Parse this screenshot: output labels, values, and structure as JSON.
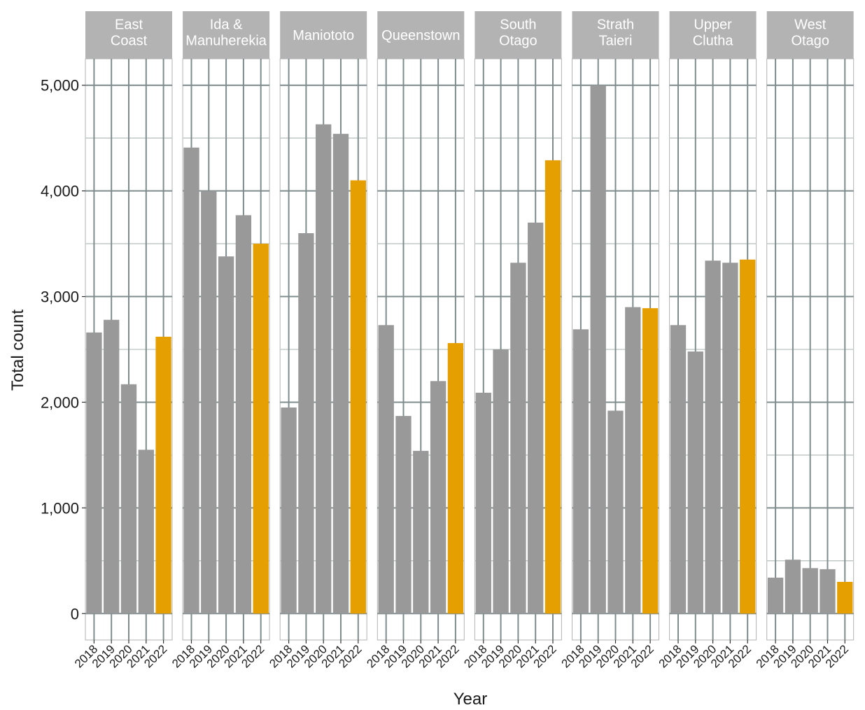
{
  "chart_data": {
    "type": "bar",
    "xlabel": "Year",
    "ylabel": "Total count",
    "ylim": [
      -250,
      5250
    ],
    "y_ticks": [
      0,
      1000,
      2000,
      3000,
      4000,
      5000
    ],
    "y_tick_labels": [
      "0",
      "1,000",
      "2,000",
      "3,000",
      "4,000",
      "5,000"
    ],
    "categories": [
      "2018",
      "2019",
      "2020",
      "2021",
      "2022"
    ],
    "grid": true,
    "legend": "none",
    "colors": {
      "bar": "#999999",
      "highlight": "#E69F00",
      "strip": "#B3B3B3",
      "grid_major": "#7F8C8D",
      "grid_minor": "#C5CDCC",
      "panel_border": "#B3B3B3"
    },
    "highlight_category": "2022",
    "panels": [
      {
        "strip": [
          "East",
          "Coast"
        ],
        "values": [
          2660,
          2780,
          2170,
          1550,
          2620
        ]
      },
      {
        "strip": [
          "Ida &",
          "Manuherekia"
        ],
        "values": [
          4410,
          4000,
          3380,
          3770,
          3500
        ]
      },
      {
        "strip": [
          "Maniototo"
        ],
        "values": [
          1950,
          3600,
          4630,
          4540,
          4100
        ]
      },
      {
        "strip": [
          "Queenstown"
        ],
        "values": [
          2730,
          1870,
          1540,
          2200,
          2560
        ]
      },
      {
        "strip": [
          "South",
          "Otago"
        ],
        "values": [
          2090,
          2500,
          3320,
          3700,
          4290
        ]
      },
      {
        "strip": [
          "Strath",
          "Taieri"
        ],
        "values": [
          2690,
          5000,
          1920,
          2900,
          2890
        ]
      },
      {
        "strip": [
          "Upper",
          "Clutha"
        ],
        "values": [
          2730,
          2480,
          3340,
          3320,
          3350
        ]
      },
      {
        "strip": [
          "West",
          "Otago"
        ],
        "values": [
          340,
          510,
          430,
          420,
          300
        ]
      }
    ]
  }
}
